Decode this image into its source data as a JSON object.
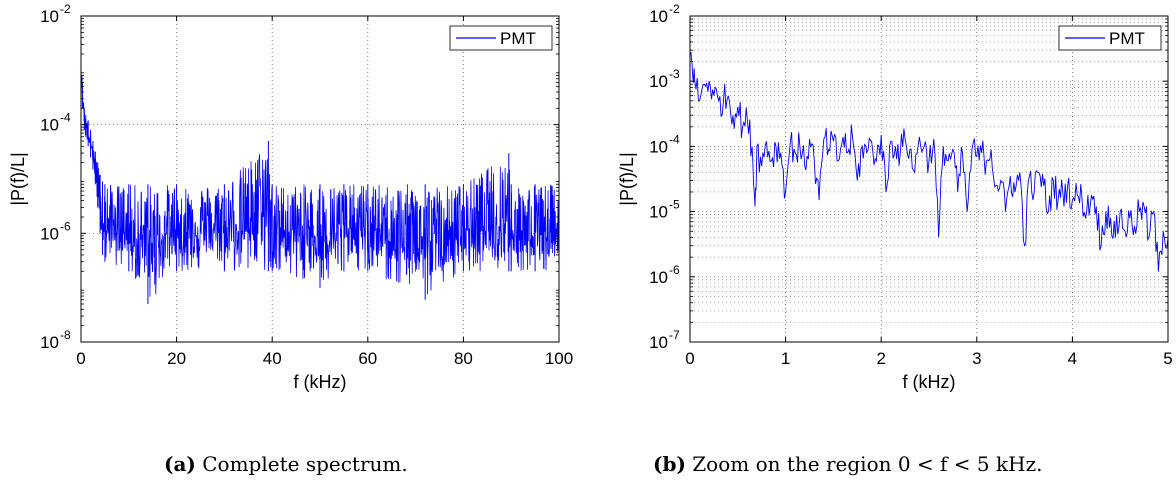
{
  "charts": [
    {
      "type": "line",
      "xlabel": "f (kHz)",
      "ylabel": "|P(f)/L|",
      "xlim": [
        0,
        100
      ],
      "ylim_log10": [
        -8,
        -2
      ],
      "y_scale": "log",
      "xticks": [
        "0",
        "20",
        "40",
        "60",
        "80",
        "100"
      ],
      "yticks": [
        {
          "base": "10",
          "exp": "-8"
        },
        {
          "base": "10",
          "exp": "-6"
        },
        {
          "base": "10",
          "exp": "-4"
        },
        {
          "base": "10",
          "exp": "-2"
        }
      ],
      "grid": "major",
      "legend": "top-right",
      "series_name": "PMT",
      "series_color": "#0000ff",
      "caption_tag": "(a)",
      "caption_text": "Complete spectrum."
    },
    {
      "type": "line",
      "xlabel": "f (kHz)",
      "ylabel": "|P(f)/L|",
      "xlim": [
        0,
        5
      ],
      "ylim_log10": [
        -7,
        -2
      ],
      "y_scale": "log",
      "xticks": [
        "0",
        "1",
        "2",
        "3",
        "4",
        "5"
      ],
      "yticks": [
        {
          "base": "10",
          "exp": "-7"
        },
        {
          "base": "10",
          "exp": "-6"
        },
        {
          "base": "10",
          "exp": "-5"
        },
        {
          "base": "10",
          "exp": "-4"
        },
        {
          "base": "10",
          "exp": "-3"
        },
        {
          "base": "10",
          "exp": "-2"
        }
      ],
      "grid": "major-and-minor",
      "legend": "top-right",
      "series_name": "PMT",
      "series_color": "#0000ff",
      "caption_tag": "(b)",
      "caption_text": "Zoom on the region 0 < f < 5 kHz."
    }
  ],
  "chart_data": [
    {
      "type": "line",
      "xlabel": "f (kHz)",
      "ylabel": "|P(f)/L|",
      "xlim": [
        0,
        100
      ],
      "ylim": [
        1e-08,
        0.01
      ],
      "y_scale": "log",
      "series": [
        {
          "name": "PMT",
          "x": [
            0,
            0.3,
            0.7,
            1.0,
            1.5,
            2.0,
            2.5,
            3.0,
            3.5,
            4.0,
            4.5,
            5.0,
            10,
            14,
            20,
            30,
            39.2,
            40,
            50,
            55,
            60,
            72,
            80,
            89.5,
            90,
            95,
            100
          ],
          "upper": [
            0.002,
            0.0006,
            0.0002,
            0.00015,
            0.00012,
            8e-05,
            5e-05,
            3.2e-05,
            2e-05,
            1.2e-05,
            9e-06,
            8e-06,
            8e-06,
            8e-06,
            8e-06,
            8e-06,
            5e-05,
            8e-06,
            8e-06,
            8e-06,
            8e-06,
            8e-06,
            8e-06,
            3e-05,
            8e-06,
            8e-06,
            8e-06
          ],
          "lower": [
            0.0005,
            0.0002,
            8e-05,
            6e-05,
            4e-05,
            2.5e-05,
            1.5e-05,
            8e-06,
            3e-06,
            1e-06,
            4e-07,
            3e-07,
            2e-07,
            5e-08,
            2e-07,
            2e-07,
            2e-07,
            2e-07,
            1e-07,
            2e-07,
            2e-07,
            6e-08,
            2e-07,
            2e-07,
            2e-07,
            2e-07,
            2e-07
          ]
        }
      ]
    },
    {
      "type": "line",
      "xlabel": "f (kHz)",
      "ylabel": "|P(f)/L|",
      "xlim": [
        0,
        5
      ],
      "ylim": [
        1e-07,
        0.01
      ],
      "y_scale": "log",
      "series": [
        {
          "name": "PMT",
          "x": [
            0,
            0.02,
            0.05,
            0.1,
            0.15,
            0.2,
            0.25,
            0.3,
            0.35,
            0.4,
            0.45,
            0.5,
            0.55,
            0.6,
            0.65,
            0.68,
            0.7,
            0.75,
            0.8,
            0.85,
            0.9,
            0.95,
            1.0,
            1.05,
            1.1,
            1.15,
            1.2,
            1.25,
            1.3,
            1.35,
            1.4,
            1.45,
            1.5,
            1.55,
            1.6,
            1.65,
            1.7,
            1.75,
            1.8,
            1.85,
            1.9,
            1.95,
            2.0,
            2.05,
            2.1,
            2.15,
            2.2,
            2.25,
            2.3,
            2.35,
            2.4,
            2.45,
            2.5,
            2.55,
            2.6,
            2.65,
            2.7,
            2.75,
            2.8,
            2.85,
            2.9,
            2.95,
            3.0,
            3.05,
            3.1,
            3.15,
            3.2,
            3.25,
            3.3,
            3.35,
            3.4,
            3.45,
            3.5,
            3.55,
            3.6,
            3.65,
            3.7,
            3.75,
            3.8,
            3.85,
            3.9,
            3.95,
            4.0,
            4.05,
            4.1,
            4.15,
            4.2,
            4.25,
            4.3,
            4.35,
            4.4,
            4.45,
            4.5,
            4.55,
            4.6,
            4.65,
            4.7,
            4.75,
            4.8,
            4.85,
            4.9,
            4.95,
            5.0
          ],
          "y": [
            0.0025,
            0.002,
            0.001,
            0.0005,
            0.0009,
            0.001,
            0.0006,
            0.0005,
            0.0005,
            0.0006,
            0.0003,
            0.0004,
            0.0002,
            0.00025,
            0.0001,
            1.2e-05,
            0.0001,
            5e-05,
            0.00012,
            6e-05,
            0.0001,
            8e-05,
            2e-05,
            0.00012,
            8e-05,
            0.0001,
            5e-05,
            0.00013,
            6e-05,
            1.5e-05,
            0.00013,
            9e-05,
            0.00012,
            6e-05,
            0.00014,
            8e-05,
            0.00014,
            3e-05,
            0.0001,
            8e-05,
            0.00012,
            6e-05,
            0.00015,
            2e-05,
            0.00012,
            0.0001,
            8e-05,
            0.00013,
            9e-05,
            4e-05,
            0.00014,
            0.0001,
            6e-05,
            0.00013,
            4e-06,
            0.0001,
            6e-05,
            9e-05,
            2e-05,
            8e-05,
            1e-05,
            9e-05,
            7e-05,
            8e-05,
            6e-05,
            9e-05,
            2.5e-05,
            3e-05,
            1e-05,
            3.5e-05,
            2e-05,
            4e-05,
            3e-06,
            3.5e-05,
            2e-05,
            4e-05,
            2.5e-05,
            1e-05,
            3e-05,
            1.5e-05,
            2e-05,
            2.5e-05,
            1.5e-05,
            1.8e-05,
            1.6e-05,
            1e-05,
            1.8e-05,
            1.2e-05,
            3e-06,
            1e-05,
            8e-06,
            4e-06,
            1e-05,
            5e-06,
            8e-06,
            6e-06,
            1e-05,
            1.2e-05,
            4e-06,
            1e-05,
            1.2e-06,
            5e-06,
            4e-06
          ]
        }
      ]
    }
  ]
}
